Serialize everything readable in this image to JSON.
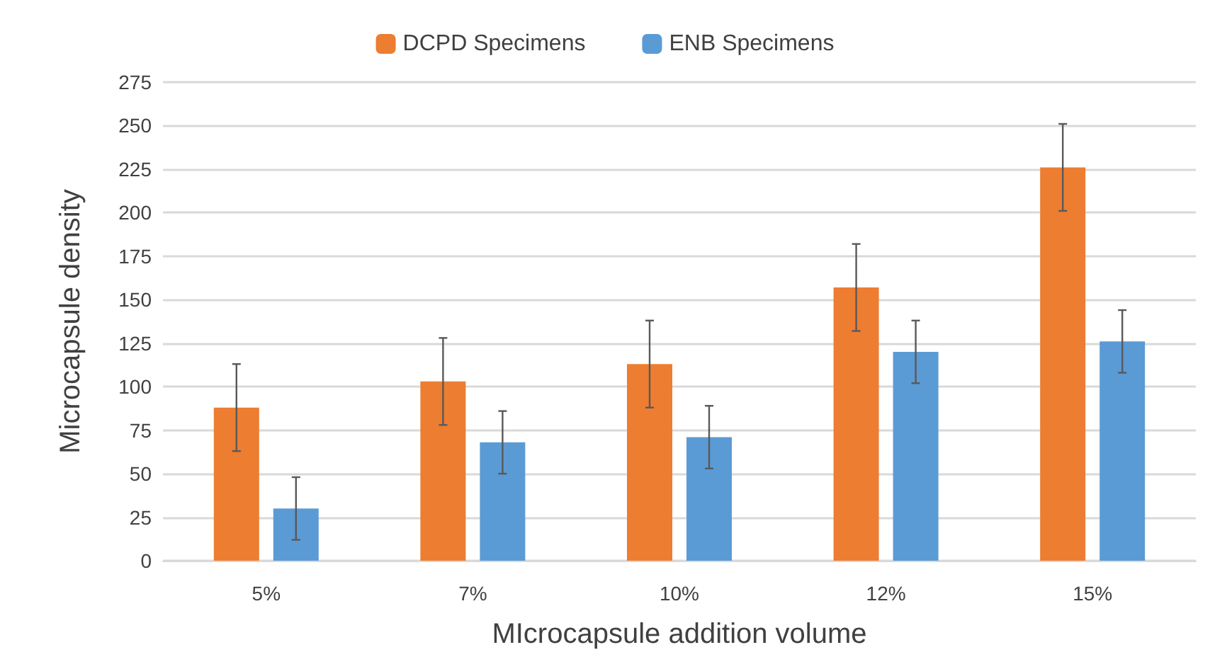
{
  "chart_data": {
    "type": "bar",
    "xlabel": "MIcrocapsule addition volume",
    "ylabel": "Microcapsule density",
    "categories": [
      "5%",
      "7%",
      "10%",
      "12%",
      "15%"
    ],
    "series": [
      {
        "name": "DCPD Specimens",
        "color": "#ed7d31",
        "values": [
          88,
          103,
          113,
          157,
          226
        ],
        "errors": [
          25,
          25,
          25,
          25,
          25
        ]
      },
      {
        "name": "ENB Specimens",
        "color": "#5b9bd5",
        "values": [
          30,
          68,
          71,
          120,
          126
        ],
        "errors": [
          18,
          18,
          18,
          18,
          18
        ]
      }
    ],
    "ylim": [
      0,
      275
    ],
    "yticks": [
      0,
      25,
      50,
      75,
      100,
      125,
      150,
      175,
      200,
      225,
      250,
      275
    ],
    "grid": "y",
    "legend": "top"
  }
}
